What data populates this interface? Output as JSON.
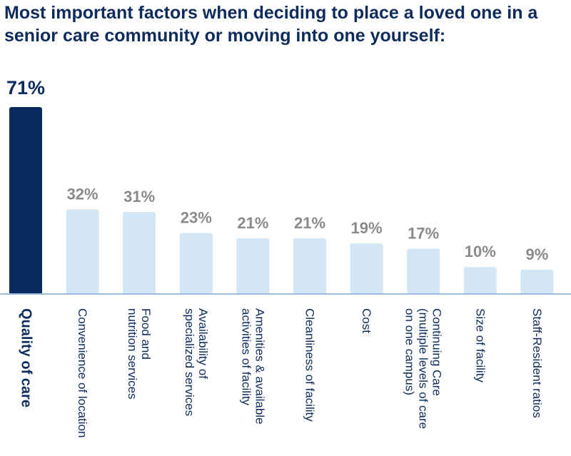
{
  "title": "Most important factors when deciding to place a loved one in a senior care community or moving into one yourself:",
  "colors": {
    "highlight": "#0b2b5e",
    "bar": "#d2e6f5",
    "value_text": "#8a8a8a",
    "label_text": "#0d2b5c",
    "axis": "#9dbde0"
  },
  "chart_data": {
    "type": "bar",
    "title": "Most important factors when deciding to place a loved one in a senior care community or moving into one yourself:",
    "categories": [
      "Quality of care",
      "Convenience of location",
      "Food and\nnutrition services",
      "Availability of\nspecialized services",
      "Amenities & available\nactivities of facility",
      "Cleanliness of facility",
      "Cost",
      "Continuing Care\n(multiple levels of care\non one campus)",
      "Size of facility",
      "Staff-Resident ratios"
    ],
    "values": [
      71,
      32,
      31,
      23,
      21,
      21,
      19,
      17,
      10,
      9
    ],
    "value_labels": [
      "71%",
      "32%",
      "31%",
      "23%",
      "21%",
      "21%",
      "19%",
      "17%",
      "10%",
      "9%"
    ],
    "highlighted_index": 0,
    "ylim": [
      0,
      71
    ],
    "grid": false,
    "xlabel": "",
    "ylabel": ""
  }
}
